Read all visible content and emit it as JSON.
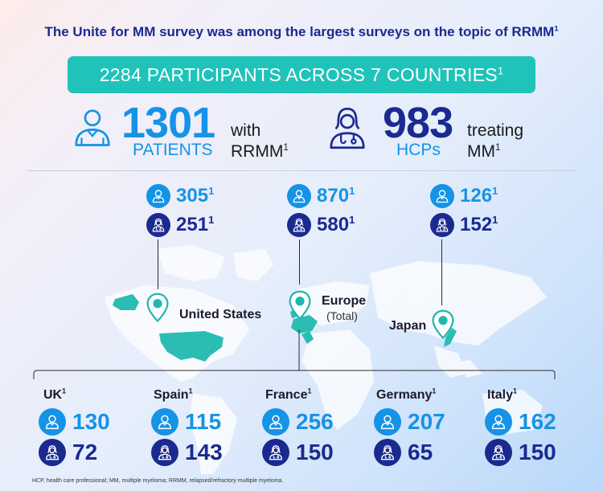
{
  "title": "The Unite  for MM survey was among the largest surveys on the topic of RRMM",
  "title_sup": "1",
  "banner": {
    "text": "2284 PARTICIPANTS ACROSS 7 COUNTRIES",
    "sup": "1"
  },
  "patients": {
    "number": "1301",
    "label": "PATIENTS",
    "desc_line1": "with",
    "desc_line2": "RRMM",
    "sup": "1"
  },
  "hcps": {
    "number": "983",
    "label": "HCPs",
    "desc_line1": "treating",
    "desc_line2": "MM",
    "sup": "1"
  },
  "regions": [
    {
      "name": "United States",
      "sub": "",
      "patients": "305",
      "hcps": "251",
      "sup": "1"
    },
    {
      "name": "Europe",
      "sub": "(Total)",
      "patients": "870",
      "hcps": "580",
      "sup": "1"
    },
    {
      "name": "Japan",
      "sub": "",
      "patients": "126",
      "hcps": "152",
      "sup": "1"
    }
  ],
  "countries": [
    {
      "name": "UK",
      "sup": "1",
      "patients": "130",
      "hcps": "72"
    },
    {
      "name": "Spain",
      "sup": "1",
      "patients": "115",
      "hcps": "143"
    },
    {
      "name": "France",
      "sup": "1",
      "patients": "256",
      "hcps": "150"
    },
    {
      "name": "Germany",
      "sup": "1",
      "patients": "207",
      "hcps": "65"
    },
    {
      "name": "Italy",
      "sup": "1",
      "patients": "162",
      "hcps": "150"
    }
  ],
  "footnote": "HCP, health care professional; MM, multiple myeloma; RRMM, relapsed/refractory multiple myeloma.",
  "colors": {
    "patient_blue": "#1593e6",
    "hcp_navy": "#1b2a8f",
    "teal": "#20c3ba",
    "map_grey": "#ffffff"
  },
  "icons": {
    "patient": "patient-person-icon",
    "hcp": "doctor-stethoscope-icon",
    "location": "map-pin-icon"
  }
}
